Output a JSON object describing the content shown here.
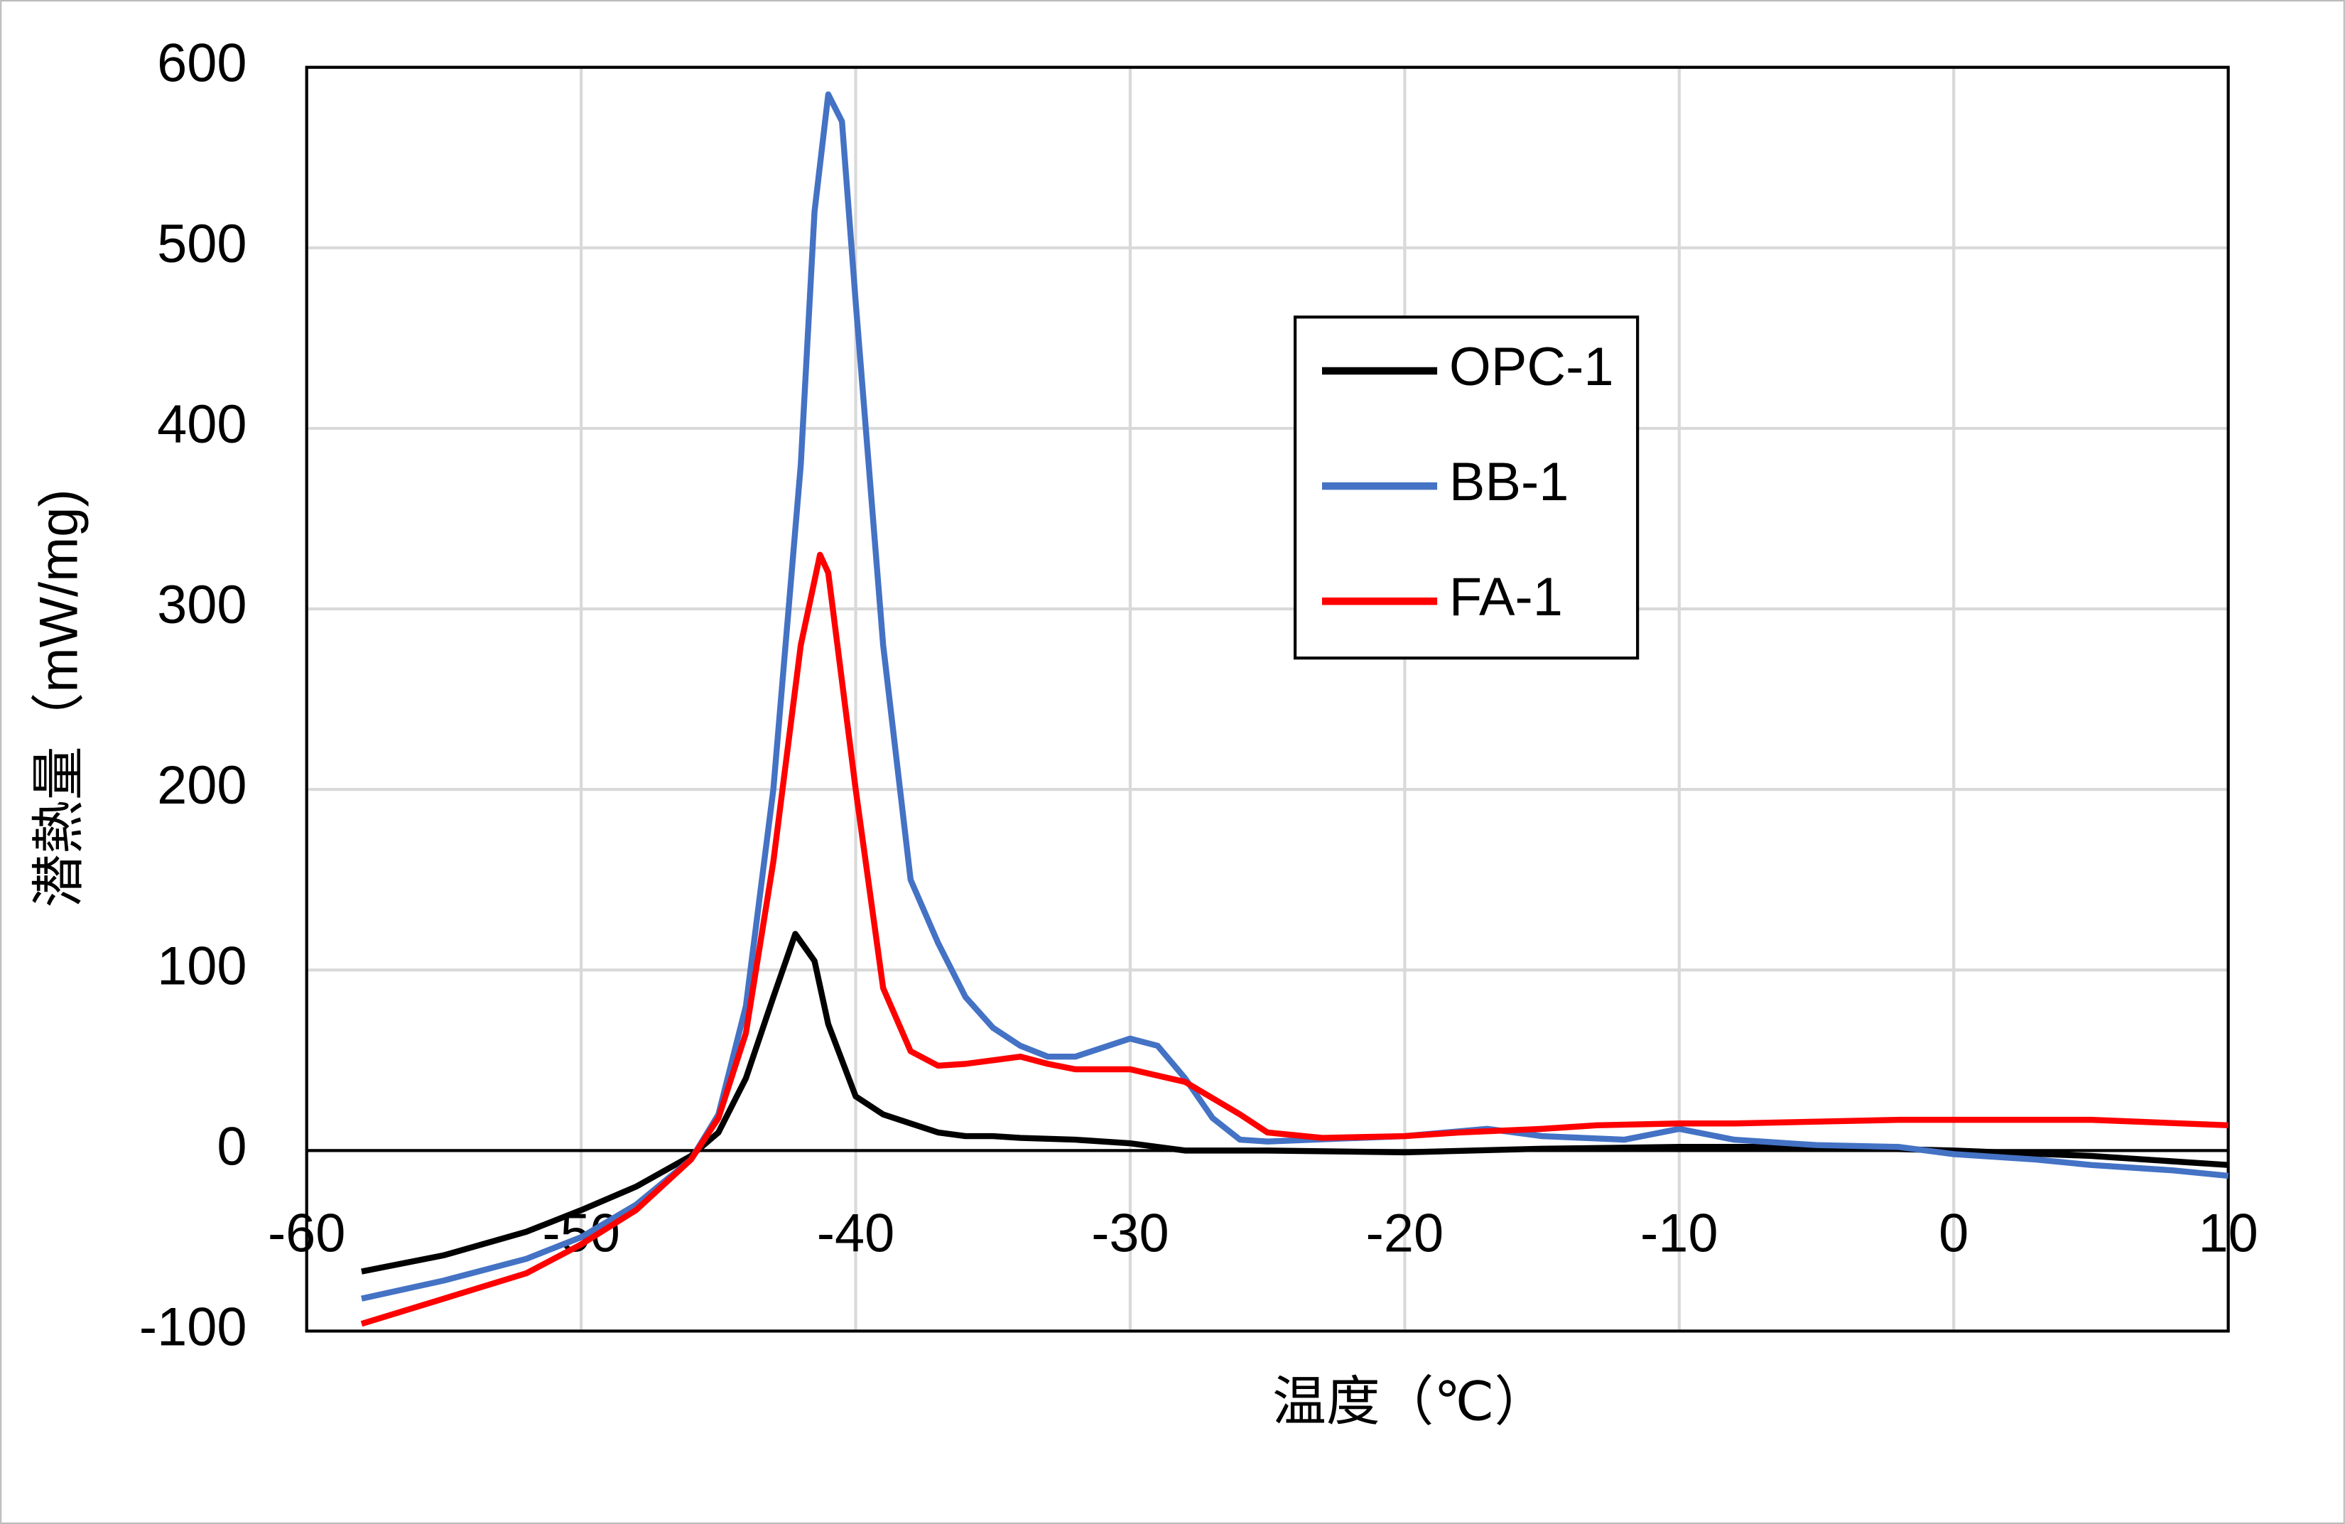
{
  "chart_data": {
    "type": "line",
    "x_label": "温度（℃）",
    "y_label": "潜熱量（mW/mg)",
    "xlim": [
      -60,
      10
    ],
    "xticks": [
      -60,
      -50,
      -40,
      -30,
      -20,
      -10,
      0,
      10
    ],
    "ylim": [
      -100,
      600
    ],
    "yticks": [
      -100,
      0,
      100,
      200,
      300,
      400,
      500,
      600
    ],
    "grid": true,
    "series": [
      {
        "name": "OPC-1",
        "color": "#000000",
        "x": [
          -58,
          -55,
          -52,
          -50,
          -48,
          -46,
          -45,
          -44,
          -43,
          -42.2,
          -41.5,
          -41,
          -40,
          -39,
          -38,
          -37,
          -36,
          -35,
          -34,
          -32,
          -30,
          -28,
          -25,
          -20,
          -15,
          -10,
          -5,
          0,
          5,
          10
        ],
        "values": [
          -67,
          -58,
          -45,
          -33,
          -20,
          -3,
          10,
          40,
          85,
          120,
          105,
          70,
          30,
          20,
          15,
          10,
          8,
          8,
          7,
          6,
          4,
          0,
          0,
          -1,
          1,
          2,
          2,
          0,
          -3,
          -8
        ]
      },
      {
        "name": "BB-1",
        "color": "#4472c4",
        "x": [
          -58,
          -55,
          -52,
          -50,
          -48,
          -46,
          -45,
          -44,
          -43,
          -42,
          -41.5,
          -41,
          -40.5,
          -40,
          -39,
          -38,
          -37,
          -36,
          -35,
          -34,
          -33,
          -32,
          -31,
          -30,
          -29,
          -28,
          -27,
          -26,
          -25,
          -20,
          -17,
          -15,
          -12,
          -10,
          -8,
          -5,
          -2,
          0,
          3,
          5,
          8,
          10
        ],
        "values": [
          -82,
          -72,
          -60,
          -48,
          -30,
          -5,
          20,
          80,
          200,
          380,
          520,
          585,
          570,
          470,
          280,
          150,
          115,
          85,
          68,
          58,
          52,
          52,
          57,
          62,
          58,
          40,
          18,
          6,
          5,
          8,
          12,
          8,
          6,
          12,
          6,
          3,
          2,
          -2,
          -5,
          -8,
          -11,
          -14
        ]
      },
      {
        "name": "FA-1",
        "color": "#ff0000",
        "x": [
          -58,
          -55,
          -52,
          -50,
          -48,
          -46,
          -45,
          -44,
          -43,
          -42,
          -41.3,
          -41,
          -40,
          -39,
          -38,
          -37,
          -36,
          -35,
          -34,
          -33,
          -32,
          -30,
          -28,
          -26,
          -25,
          -23,
          -20,
          -18,
          -15,
          -13,
          -10,
          -8,
          -5,
          -2,
          0,
          5,
          10
        ],
        "values": [
          -96,
          -82,
          -68,
          -52,
          -33,
          -5,
          18,
          65,
          160,
          280,
          330,
          320,
          200,
          90,
          55,
          47,
          48,
          50,
          52,
          48,
          45,
          45,
          38,
          20,
          10,
          7,
          8,
          10,
          12,
          14,
          15,
          15,
          16,
          17,
          17,
          17,
          14
        ]
      }
    ]
  }
}
